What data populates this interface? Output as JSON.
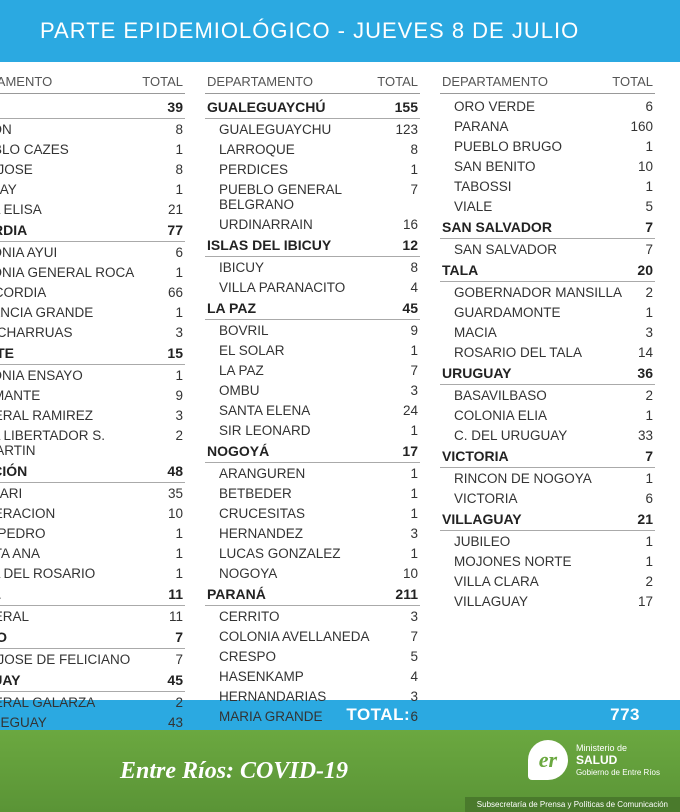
{
  "title": "PARTE EPIDEMIOLÓGICO - JUEVES 8 DE JULIO",
  "col_header": {
    "dept": "DEPARTAMENTO",
    "total": "TOTAL",
    "dept_left": "ARTAMENTO"
  },
  "column1": [
    {
      "type": "dept",
      "name": "N",
      "total": 39
    },
    {
      "type": "loc",
      "name": "LON",
      "total": 8
    },
    {
      "type": "loc",
      "name": "EBLO CAZES",
      "total": 1
    },
    {
      "type": "loc",
      "name": "N JOSE",
      "total": 8
    },
    {
      "type": "loc",
      "name": "AJAY",
      "total": 1
    },
    {
      "type": "loc",
      "name": "LA ELISA",
      "total": 21
    },
    {
      "type": "dept",
      "name": "CORDIA",
      "total": 77
    },
    {
      "type": "loc",
      "name": "LONIA AYUI",
      "total": 6
    },
    {
      "type": "loc",
      "name": "LONIA GENERAL ROCA",
      "total": 1
    },
    {
      "type": "loc",
      "name": "NCORDIA",
      "total": 66
    },
    {
      "type": "loc",
      "name": "TANCIA GRANDE",
      "total": 1
    },
    {
      "type": "loc",
      "name": "S CHARRUAS",
      "total": 3
    },
    {
      "type": "dept",
      "name": "IANTE",
      "total": 15
    },
    {
      "type": "loc",
      "name": "LONIA ENSAYO",
      "total": 1
    },
    {
      "type": "loc",
      "name": "AMANTE",
      "total": 9
    },
    {
      "type": "loc",
      "name": "NERAL RAMIREZ",
      "total": 3
    },
    {
      "type": "loc",
      "name": "LA LIBERTADOR S. MARTIN",
      "total": 2
    },
    {
      "type": "dept",
      "name": "RACIÓN",
      "total": 48
    },
    {
      "type": "loc",
      "name": "AJARI",
      "total": 35
    },
    {
      "type": "loc",
      "name": "DERACION",
      "total": 10
    },
    {
      "type": "loc",
      "name": "N PEDRO",
      "total": 1
    },
    {
      "type": "loc",
      "name": "NTA ANA",
      "total": 1
    },
    {
      "type": "loc",
      "name": "LA DEL ROSARIO",
      "total": 1
    },
    {
      "type": "dept",
      "name": "RAL",
      "total": 11
    },
    {
      "type": "loc",
      "name": "DERAL",
      "total": 11
    },
    {
      "type": "dept",
      "name": "IANO",
      "total": 7
    },
    {
      "type": "loc",
      "name": "N JOSE DE FELICIANO",
      "total": 7
    },
    {
      "type": "dept",
      "name": "EGUAY",
      "total": 45
    },
    {
      "type": "loc",
      "name": "NERAL GALARZA",
      "total": 2
    },
    {
      "type": "loc",
      "name": "ALEGUAY",
      "total": 43
    }
  ],
  "column2": [
    {
      "type": "dept",
      "name": "GUALEGUAYCHÚ",
      "total": 155
    },
    {
      "type": "loc",
      "name": "GUALEGUAYCHU",
      "total": 123
    },
    {
      "type": "loc",
      "name": "LARROQUE",
      "total": 8
    },
    {
      "type": "loc",
      "name": "PERDICES",
      "total": 1
    },
    {
      "type": "loc",
      "name": "PUEBLO GENERAL BELGRANO",
      "total": 7
    },
    {
      "type": "loc",
      "name": "URDINARRAIN",
      "total": 16
    },
    {
      "type": "dept",
      "name": "ISLAS DEL IBICUY",
      "total": 12
    },
    {
      "type": "loc",
      "name": "IBICUY",
      "total": 8
    },
    {
      "type": "loc",
      "name": "VILLA PARANACITO",
      "total": 4
    },
    {
      "type": "dept",
      "name": "LA PAZ",
      "total": 45
    },
    {
      "type": "loc",
      "name": "BOVRIL",
      "total": 9
    },
    {
      "type": "loc",
      "name": "EL SOLAR",
      "total": 1
    },
    {
      "type": "loc",
      "name": "LA PAZ",
      "total": 7
    },
    {
      "type": "loc",
      "name": "OMBU",
      "total": 3
    },
    {
      "type": "loc",
      "name": "SANTA ELENA",
      "total": 24
    },
    {
      "type": "loc",
      "name": "SIR LEONARD",
      "total": 1
    },
    {
      "type": "dept",
      "name": "NOGOYÁ",
      "total": 17
    },
    {
      "type": "loc",
      "name": "ARANGUREN",
      "total": 1
    },
    {
      "type": "loc",
      "name": "BETBEDER",
      "total": 1
    },
    {
      "type": "loc",
      "name": "CRUCESITAS",
      "total": 1
    },
    {
      "type": "loc",
      "name": "HERNANDEZ",
      "total": 3
    },
    {
      "type": "loc",
      "name": "LUCAS GONZALEZ",
      "total": 1
    },
    {
      "type": "loc",
      "name": "NOGOYA",
      "total": 10
    },
    {
      "type": "dept",
      "name": "PARANÁ",
      "total": 211
    },
    {
      "type": "loc",
      "name": "CERRITO",
      "total": 3
    },
    {
      "type": "loc",
      "name": "COLONIA AVELLANEDA",
      "total": 7
    },
    {
      "type": "loc",
      "name": "CRESPO",
      "total": 5
    },
    {
      "type": "loc",
      "name": "HASENKAMP",
      "total": 4
    },
    {
      "type": "loc",
      "name": "HERNANDARIAS",
      "total": 3
    },
    {
      "type": "loc",
      "name": "MARIA GRANDE",
      "total": 6
    }
  ],
  "column3": [
    {
      "type": "loc",
      "name": "ORO VERDE",
      "total": 6
    },
    {
      "type": "loc",
      "name": "PARANA",
      "total": 160
    },
    {
      "type": "loc",
      "name": "PUEBLO BRUGO",
      "total": 1
    },
    {
      "type": "loc",
      "name": "SAN BENITO",
      "total": 10
    },
    {
      "type": "loc",
      "name": "TABOSSI",
      "total": 1
    },
    {
      "type": "loc",
      "name": "VIALE",
      "total": 5
    },
    {
      "type": "dept",
      "name": "SAN SALVADOR",
      "total": 7
    },
    {
      "type": "loc",
      "name": "SAN SALVADOR",
      "total": 7
    },
    {
      "type": "dept",
      "name": "TALA",
      "total": 20
    },
    {
      "type": "loc",
      "name": "GOBERNADOR MANSILLA",
      "total": 2
    },
    {
      "type": "loc",
      "name": "GUARDAMONTE",
      "total": 1
    },
    {
      "type": "loc",
      "name": "MACIA",
      "total": 3
    },
    {
      "type": "loc",
      "name": "ROSARIO DEL TALA",
      "total": 14
    },
    {
      "type": "dept",
      "name": "URUGUAY",
      "total": 36
    },
    {
      "type": "loc",
      "name": "BASAVILBASO",
      "total": 2
    },
    {
      "type": "loc",
      "name": "COLONIA ELIA",
      "total": 1
    },
    {
      "type": "loc",
      "name": "C. DEL URUGUAY",
      "total": 33
    },
    {
      "type": "dept",
      "name": "VICTORIA",
      "total": 7
    },
    {
      "type": "loc",
      "name": "RINCON DE NOGOYA",
      "total": 1
    },
    {
      "type": "loc",
      "name": "VICTORIA",
      "total": 6
    },
    {
      "type": "dept",
      "name": "VILLAGUAY",
      "total": 21
    },
    {
      "type": "loc",
      "name": "JUBILEO",
      "total": 1
    },
    {
      "type": "loc",
      "name": "MOJONES NORTE",
      "total": 1
    },
    {
      "type": "loc",
      "name": "VILLA CLARA",
      "total": 2
    },
    {
      "type": "loc",
      "name": "VILLAGUAY",
      "total": 17
    }
  ],
  "grand_total": {
    "label": "TOTAL:",
    "value": 773
  },
  "footer": {
    "title": "Entre Ríos: COVID-19",
    "logo_text1": "Ministerio de",
    "logo_text2": "SALUD",
    "logo_text3": "Gobierno de Entre Ríos",
    "logo_glyph": "er",
    "sub": "Subsecretaría de Prensa y Políticas de Comunicación"
  },
  "colors": {
    "header_bg": "#2ba9e1",
    "footer_bg": "#6ba840"
  }
}
